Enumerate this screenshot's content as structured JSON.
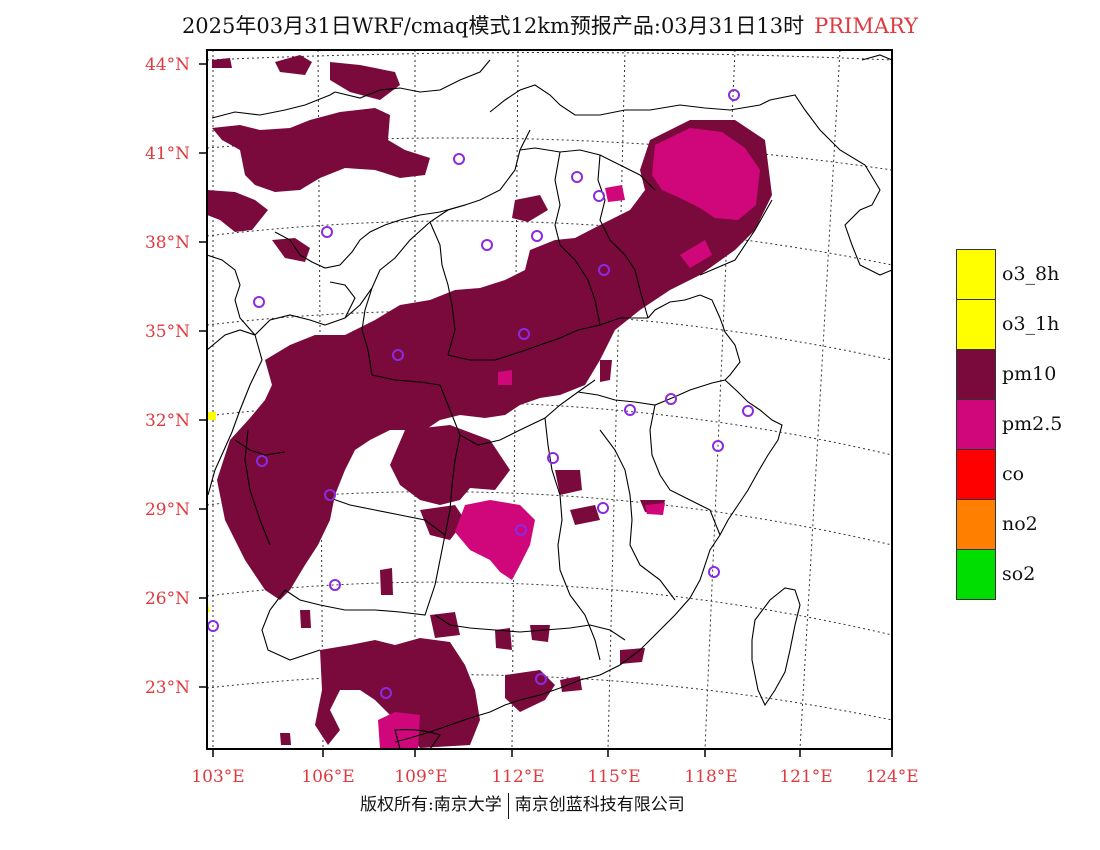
{
  "title": {
    "main": "2025年03月31日WRF/cmaq模式12km预报产品:03月31日13时",
    "tag": "PRIMARY"
  },
  "map": {
    "lat_labels": [
      "44°N",
      "41°N",
      "38°N",
      "35°N",
      "32°N",
      "29°N",
      "26°N",
      "23°N"
    ],
    "lon_labels": [
      "103°E",
      "106°E",
      "109°E",
      "112°E",
      "115°E",
      "118°E",
      "121°E",
      "124°E"
    ],
    "colors": {
      "pm10": "#7b0a3c",
      "pm25": "#d0077a",
      "o3": "#ffff00",
      "station": "#8a2be2",
      "label": "#e0393e"
    }
  },
  "legend": [
    {
      "label": "o3_8h",
      "color": "#ffff00"
    },
    {
      "label": "o3_1h",
      "color": "#ffff00"
    },
    {
      "label": "pm10",
      "color": "#7b0a3c"
    },
    {
      "label": "pm2.5",
      "color": "#d0077a"
    },
    {
      "label": "co",
      "color": "#ff0000"
    },
    {
      "label": "no2",
      "color": "#ff8000"
    },
    {
      "label": "so2",
      "color": "#00dd00"
    }
  ],
  "footer": {
    "left": "版权所有:南京大学",
    "right": "南京创蓝科技有限公司"
  }
}
